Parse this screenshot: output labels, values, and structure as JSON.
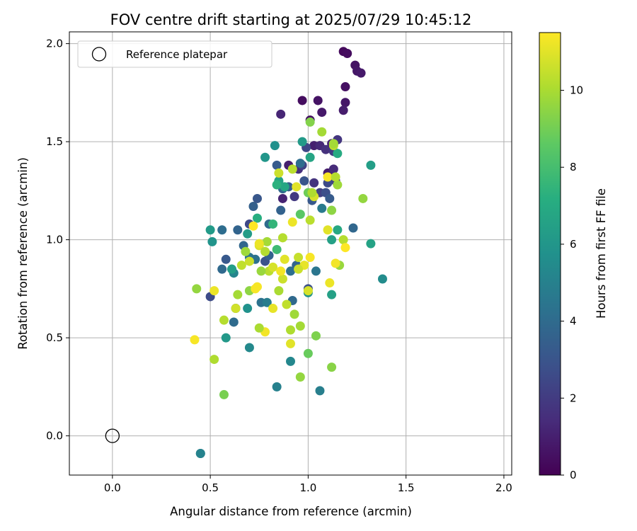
{
  "chart_data": {
    "type": "scatter",
    "title": "FOV centre drift starting at 2025/07/29 10:45:12",
    "xlabel": "Angular distance from reference (arcmin)",
    "ylabel": "Rotation from reference (arcmin)",
    "xlim": [
      -0.22,
      2.04
    ],
    "ylim": [
      -0.2,
      2.06
    ],
    "xticks": [
      0.0,
      0.5,
      1.0,
      1.5,
      2.0
    ],
    "xtick_labels": [
      "0.0",
      "0.5",
      "1.0",
      "1.5",
      "2.0"
    ],
    "yticks": [
      0.0,
      0.5,
      1.0,
      1.5,
      2.0
    ],
    "ytick_labels": [
      "0.0",
      "0.5",
      "1.0",
      "1.5",
      "2.0"
    ],
    "grid": true,
    "legend": {
      "position": "top-left",
      "entries": [
        "Reference platepar"
      ]
    },
    "reference_point": {
      "x": 0.0,
      "y": 0.0,
      "label": "Reference platepar",
      "marker": "open-circle"
    },
    "colorbar": {
      "label": "Hours from first FF file",
      "colormap": "viridis",
      "range": [
        0,
        11.5
      ],
      "ticks": [
        0,
        2,
        4,
        6,
        8,
        10
      ],
      "tick_labels": [
        "0",
        "2",
        "4",
        "6",
        "8",
        "10"
      ]
    },
    "points": [
      {
        "x": 1.18,
        "y": 1.96,
        "c": 0.3
      },
      {
        "x": 1.2,
        "y": 1.95,
        "c": 0.4
      },
      {
        "x": 1.24,
        "y": 1.89,
        "c": 0.6
      },
      {
        "x": 1.25,
        "y": 1.86,
        "c": 0.7
      },
      {
        "x": 1.27,
        "y": 1.85,
        "c": 0.8
      },
      {
        "x": 1.19,
        "y": 1.78,
        "c": 0.5
      },
      {
        "x": 0.97,
        "y": 1.71,
        "c": 0.4
      },
      {
        "x": 1.05,
        "y": 1.71,
        "c": 0.6
      },
      {
        "x": 1.19,
        "y": 1.7,
        "c": 0.7
      },
      {
        "x": 1.18,
        "y": 1.66,
        "c": 0.9
      },
      {
        "x": 1.07,
        "y": 1.65,
        "c": 0.8
      },
      {
        "x": 0.86,
        "y": 1.64,
        "c": 1.2
      },
      {
        "x": 1.01,
        "y": 1.61,
        "c": 0.5
      },
      {
        "x": 1.03,
        "y": 1.48,
        "c": 1.0
      },
      {
        "x": 1.06,
        "y": 1.48,
        "c": 1.3
      },
      {
        "x": 1.09,
        "y": 1.46,
        "c": 1.6
      },
      {
        "x": 1.12,
        "y": 1.49,
        "c": 1.1
      },
      {
        "x": 1.15,
        "y": 1.51,
        "c": 1.8
      },
      {
        "x": 1.13,
        "y": 1.45,
        "c": 2.0
      },
      {
        "x": 0.99,
        "y": 1.47,
        "c": 2.4
      },
      {
        "x": 1.1,
        "y": 1.34,
        "c": 0.9
      },
      {
        "x": 1.13,
        "y": 1.36,
        "c": 1.4
      },
      {
        "x": 1.14,
        "y": 1.3,
        "c": 2.1
      },
      {
        "x": 1.1,
        "y": 1.29,
        "c": 2.6
      },
      {
        "x": 0.9,
        "y": 1.38,
        "c": 1.0
      },
      {
        "x": 0.95,
        "y": 1.36,
        "c": 1.5
      },
      {
        "x": 0.97,
        "y": 1.38,
        "c": 2.3
      },
      {
        "x": 1.03,
        "y": 1.29,
        "c": 1.7
      },
      {
        "x": 1.06,
        "y": 1.24,
        "c": 2.2
      },
      {
        "x": 1.09,
        "y": 1.24,
        "c": 2.8
      },
      {
        "x": 1.02,
        "y": 1.2,
        "c": 3.2
      },
      {
        "x": 0.87,
        "y": 1.21,
        "c": 1.1
      },
      {
        "x": 0.93,
        "y": 1.22,
        "c": 1.9
      },
      {
        "x": 0.98,
        "y": 1.3,
        "c": 3.0
      },
      {
        "x": 0.9,
        "y": 1.27,
        "c": 3.4
      },
      {
        "x": 0.87,
        "y": 1.26,
        "c": 3.9
      },
      {
        "x": 0.84,
        "y": 1.38,
        "c": 3.3
      },
      {
        "x": 0.86,
        "y": 1.15,
        "c": 3.6
      },
      {
        "x": 0.8,
        "y": 1.08,
        "c": 4.0
      },
      {
        "x": 0.72,
        "y": 1.17,
        "c": 3.5
      },
      {
        "x": 0.74,
        "y": 1.21,
        "c": 3.1
      },
      {
        "x": 0.7,
        "y": 1.08,
        "c": 2.5
      },
      {
        "x": 0.64,
        "y": 1.05,
        "c": 3.7
      },
      {
        "x": 0.56,
        "y": 1.05,
        "c": 4.1
      },
      {
        "x": 0.67,
        "y": 0.97,
        "c": 3.8
      },
      {
        "x": 0.7,
        "y": 0.91,
        "c": 4.4
      },
      {
        "x": 0.58,
        "y": 0.9,
        "c": 3.2
      },
      {
        "x": 0.61,
        "y": 0.85,
        "c": 4.6
      },
      {
        "x": 0.56,
        "y": 0.85,
        "c": 3.9
      },
      {
        "x": 0.62,
        "y": 0.83,
        "c": 5.2
      },
      {
        "x": 0.73,
        "y": 0.9,
        "c": 4.3
      },
      {
        "x": 0.78,
        "y": 0.89,
        "c": 2.9
      },
      {
        "x": 0.8,
        "y": 0.92,
        "c": 3.6
      },
      {
        "x": 0.91,
        "y": 0.84,
        "c": 4.2
      },
      {
        "x": 0.94,
        "y": 0.87,
        "c": 3.7
      },
      {
        "x": 1.0,
        "y": 0.75,
        "c": 2.8
      },
      {
        "x": 1.04,
        "y": 0.84,
        "c": 4.5
      },
      {
        "x": 0.5,
        "y": 0.71,
        "c": 2.6
      },
      {
        "x": 0.63,
        "y": 0.65,
        "c": 3.5
      },
      {
        "x": 0.62,
        "y": 0.58,
        "c": 4.0
      },
      {
        "x": 0.76,
        "y": 0.68,
        "c": 4.3
      },
      {
        "x": 0.79,
        "y": 0.68,
        "c": 4.8
      },
      {
        "x": 0.92,
        "y": 0.69,
        "c": 3.9
      },
      {
        "x": 0.96,
        "y": 1.39,
        "c": 4.1
      },
      {
        "x": 1.07,
        "y": 1.16,
        "c": 4.7
      },
      {
        "x": 1.11,
        "y": 1.21,
        "c": 3.3
      },
      {
        "x": 1.23,
        "y": 1.06,
        "c": 3.8
      },
      {
        "x": 1.38,
        "y": 0.8,
        "c": 5.5
      },
      {
        "x": 1.12,
        "y": 0.72,
        "c": 6.5
      },
      {
        "x": 1.0,
        "y": 0.73,
        "c": 5.9
      },
      {
        "x": 0.91,
        "y": 0.38,
        "c": 5.3
      },
      {
        "x": 0.84,
        "y": 0.25,
        "c": 5.0
      },
      {
        "x": 1.06,
        "y": 0.23,
        "c": 4.9
      },
      {
        "x": 0.7,
        "y": 0.45,
        "c": 5.4
      },
      {
        "x": 0.58,
        "y": 0.5,
        "c": 6.1
      },
      {
        "x": 0.45,
        "y": -0.09,
        "c": 4.7
      },
      {
        "x": 0.45,
        "y": -0.09,
        "c": 5.1
      },
      {
        "x": 0.5,
        "y": 1.05,
        "c": 6.2
      },
      {
        "x": 0.51,
        "y": 0.99,
        "c": 5.9
      },
      {
        "x": 0.61,
        "y": 0.85,
        "c": 6.4
      },
      {
        "x": 0.69,
        "y": 0.65,
        "c": 5.8
      },
      {
        "x": 0.69,
        "y": 1.03,
        "c": 6.3
      },
      {
        "x": 0.78,
        "y": 1.42,
        "c": 6.0
      },
      {
        "x": 0.83,
        "y": 1.48,
        "c": 5.7
      },
      {
        "x": 0.85,
        "y": 1.3,
        "c": 6.6
      },
      {
        "x": 0.88,
        "y": 1.27,
        "c": 6.8
      },
      {
        "x": 0.97,
        "y": 1.5,
        "c": 6.2
      },
      {
        "x": 1.01,
        "y": 1.42,
        "c": 6.7
      },
      {
        "x": 1.15,
        "y": 1.44,
        "c": 7.0
      },
      {
        "x": 1.15,
        "y": 1.05,
        "c": 6.9
      },
      {
        "x": 1.12,
        "y": 1.0,
        "c": 6.5
      },
      {
        "x": 1.32,
        "y": 1.38,
        "c": 6.4
      },
      {
        "x": 1.32,
        "y": 0.98,
        "c": 6.6
      },
      {
        "x": 0.74,
        "y": 1.11,
        "c": 7.2
      },
      {
        "x": 0.82,
        "y": 1.08,
        "c": 7.5
      },
      {
        "x": 0.84,
        "y": 0.95,
        "c": 7.8
      },
      {
        "x": 0.96,
        "y": 1.13,
        "c": 8.5
      },
      {
        "x": 1.0,
        "y": 1.24,
        "c": 8.9
      },
      {
        "x": 1.01,
        "y": 1.6,
        "c": 9.3
      },
      {
        "x": 1.07,
        "y": 1.55,
        "c": 9.9
      },
      {
        "x": 1.13,
        "y": 1.48,
        "c": 10.3
      },
      {
        "x": 1.15,
        "y": 1.28,
        "c": 9.8
      },
      {
        "x": 1.12,
        "y": 1.15,
        "c": 9.5
      },
      {
        "x": 1.18,
        "y": 1.0,
        "c": 10.2
      },
      {
        "x": 1.16,
        "y": 0.87,
        "c": 9.7
      },
      {
        "x": 1.28,
        "y": 1.21,
        "c": 9.6
      },
      {
        "x": 1.12,
        "y": 0.35,
        "c": 9.4
      },
      {
        "x": 1.04,
        "y": 0.51,
        "c": 9.2
      },
      {
        "x": 1.0,
        "y": 0.42,
        "c": 8.8
      },
      {
        "x": 0.96,
        "y": 0.3,
        "c": 9.6
      },
      {
        "x": 0.96,
        "y": 0.56,
        "c": 9.9
      },
      {
        "x": 0.91,
        "y": 0.54,
        "c": 10.1
      },
      {
        "x": 0.93,
        "y": 0.62,
        "c": 9.8
      },
      {
        "x": 0.89,
        "y": 0.67,
        "c": 10.4
      },
      {
        "x": 0.85,
        "y": 0.74,
        "c": 10.0
      },
      {
        "x": 0.87,
        "y": 0.8,
        "c": 10.6
      },
      {
        "x": 0.8,
        "y": 0.84,
        "c": 10.3
      },
      {
        "x": 0.76,
        "y": 0.84,
        "c": 9.7
      },
      {
        "x": 0.7,
        "y": 0.74,
        "c": 9.5
      },
      {
        "x": 0.64,
        "y": 0.72,
        "c": 9.9
      },
      {
        "x": 0.63,
        "y": 0.65,
        "c": 10.7
      },
      {
        "x": 0.57,
        "y": 0.59,
        "c": 10.2
      },
      {
        "x": 0.57,
        "y": 0.21,
        "c": 9.1
      },
      {
        "x": 0.52,
        "y": 0.39,
        "c": 10.1
      },
      {
        "x": 0.43,
        "y": 0.75,
        "c": 9.6
      },
      {
        "x": 0.52,
        "y": 0.74,
        "c": 11.2
      },
      {
        "x": 0.42,
        "y": 0.49,
        "c": 11.4
      },
      {
        "x": 0.66,
        "y": 0.87,
        "c": 10.4
      },
      {
        "x": 0.68,
        "y": 0.94,
        "c": 9.8
      },
      {
        "x": 0.7,
        "y": 0.89,
        "c": 10.6
      },
      {
        "x": 0.75,
        "y": 0.97,
        "c": 10.9
      },
      {
        "x": 0.78,
        "y": 0.94,
        "c": 10.2
      },
      {
        "x": 0.79,
        "y": 0.99,
        "c": 9.9
      },
      {
        "x": 0.82,
        "y": 0.86,
        "c": 10.8
      },
      {
        "x": 0.86,
        "y": 0.84,
        "c": 11.3
      },
      {
        "x": 0.88,
        "y": 0.9,
        "c": 11.0
      },
      {
        "x": 0.92,
        "y": 1.09,
        "c": 11.2
      },
      {
        "x": 0.87,
        "y": 1.01,
        "c": 10.2
      },
      {
        "x": 0.95,
        "y": 0.91,
        "c": 10.5
      },
      {
        "x": 0.98,
        "y": 0.87,
        "c": 11.1
      },
      {
        "x": 1.01,
        "y": 0.91,
        "c": 11.4
      },
      {
        "x": 0.95,
        "y": 0.85,
        "c": 10.6
      },
      {
        "x": 1.01,
        "y": 1.1,
        "c": 10.3
      },
      {
        "x": 1.1,
        "y": 1.05,
        "c": 11.0
      },
      {
        "x": 1.14,
        "y": 0.88,
        "c": 11.3
      },
      {
        "x": 1.19,
        "y": 0.96,
        "c": 11.5
      },
      {
        "x": 1.11,
        "y": 0.78,
        "c": 11.2
      },
      {
        "x": 1.0,
        "y": 0.74,
        "c": 10.8
      },
      {
        "x": 0.91,
        "y": 0.47,
        "c": 11.0
      },
      {
        "x": 0.78,
        "y": 0.53,
        "c": 11.3
      },
      {
        "x": 0.75,
        "y": 0.55,
        "c": 10.0
      },
      {
        "x": 0.82,
        "y": 0.65,
        "c": 11.1
      },
      {
        "x": 0.74,
        "y": 0.76,
        "c": 11.4
      },
      {
        "x": 0.72,
        "y": 1.07,
        "c": 11.5
      },
      {
        "x": 0.75,
        "y": 0.98,
        "c": 11.2
      },
      {
        "x": 0.73,
        "y": 0.75,
        "c": 11.4
      },
      {
        "x": 0.85,
        "y": 1.34,
        "c": 10.6
      },
      {
        "x": 0.92,
        "y": 1.36,
        "c": 10.3
      },
      {
        "x": 0.94,
        "y": 1.27,
        "c": 11.0
      },
      {
        "x": 1.03,
        "y": 1.22,
        "c": 10.8
      },
      {
        "x": 1.02,
        "y": 1.24,
        "c": 10.1
      },
      {
        "x": 1.1,
        "y": 1.32,
        "c": 11.4
      },
      {
        "x": 1.14,
        "y": 1.32,
        "c": 10.2
      },
      {
        "x": 1.13,
        "y": 1.49,
        "c": 9.9
      },
      {
        "x": 0.84,
        "y": 1.28,
        "c": 7.3
      }
    ]
  }
}
